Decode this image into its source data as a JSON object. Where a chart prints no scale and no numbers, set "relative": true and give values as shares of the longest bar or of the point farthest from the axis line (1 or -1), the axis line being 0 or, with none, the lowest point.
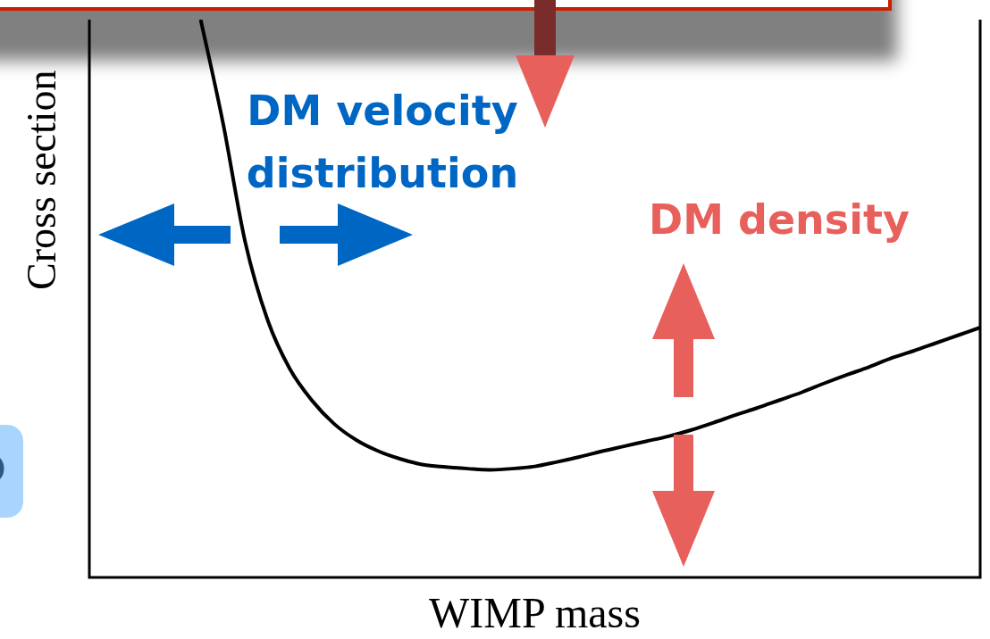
{
  "chart_data": {
    "type": "line",
    "relative": true,
    "xlabel": "WIMP mass",
    "ylabel": "Cross section",
    "annotations": [
      "DM velocity distribution",
      "DM density"
    ],
    "categories": [
      null,
      null,
      null,
      null,
      null,
      null,
      null,
      null,
      null,
      null,
      null,
      null,
      null,
      null,
      null,
      null,
      null,
      null,
      null,
      null,
      null,
      null,
      null,
      null,
      null,
      null,
      null,
      null,
      null,
      null,
      null,
      null,
      null,
      null,
      null,
      null,
      null,
      null,
      null,
      null,
      null
    ],
    "series": [
      {
        "color": "#000000",
        "values": [
          null,
          null,
          null,
          null,
          null,
          1.0,
          0.815,
          0.601,
          0.462,
          0.374,
          0.317,
          0.275,
          0.246,
          0.226,
          0.212,
          0.202,
          0.198,
          0.195,
          0.193,
          0.195,
          0.199,
          0.207,
          0.216,
          0.226,
          0.235,
          0.244,
          0.253,
          0.264,
          0.277,
          0.291,
          0.304,
          0.318,
          0.332,
          0.348,
          0.363,
          0.377,
          0.393,
          0.406,
          0.42,
          0.434,
          0.448
        ]
      }
    ],
    "legend": false,
    "marker": "none",
    "line_style": "solid"
  }
}
